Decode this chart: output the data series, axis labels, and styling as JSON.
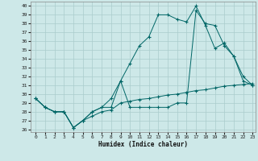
{
  "xlabel": "Humidex (Indice chaleur)",
  "background_color": "#cde8e8",
  "grid_color": "#aacccc",
  "line_color": "#006666",
  "xlim": [
    -0.5,
    23.3
  ],
  "ylim": [
    25.7,
    40.5
  ],
  "xticks": [
    0,
    1,
    2,
    3,
    4,
    5,
    6,
    7,
    8,
    9,
    10,
    11,
    12,
    13,
    14,
    15,
    16,
    17,
    18,
    19,
    20,
    21,
    22,
    23
  ],
  "yticks": [
    26,
    27,
    28,
    29,
    30,
    31,
    32,
    33,
    34,
    35,
    36,
    37,
    38,
    39,
    40
  ],
  "line1_x": [
    0,
    1,
    2,
    3,
    4,
    5,
    6,
    7,
    8,
    9,
    10,
    11,
    12,
    13,
    14,
    15,
    16,
    17,
    18,
    19,
    20,
    21,
    22,
    23
  ],
  "line1_y": [
    29.5,
    28.5,
    28,
    28,
    26.2,
    27.0,
    27.5,
    28.0,
    28.2,
    29.0,
    29.2,
    29.4,
    29.5,
    29.7,
    29.9,
    30.0,
    30.2,
    30.4,
    30.5,
    30.7,
    30.9,
    31.0,
    31.1,
    31.2
  ],
  "line2_x": [
    0,
    1,
    2,
    3,
    4,
    5,
    6,
    7,
    8,
    9,
    10,
    11,
    12,
    13,
    14,
    15,
    16,
    17,
    18,
    19,
    20,
    21,
    22,
    23
  ],
  "line2_y": [
    29.5,
    28.5,
    28,
    28,
    26.2,
    27.0,
    28.0,
    28.5,
    29.5,
    31.5,
    33.5,
    35.5,
    36.5,
    39.0,
    39.0,
    38.5,
    38.2,
    40.0,
    37.8,
    35.2,
    35.8,
    34.3,
    32.0,
    31.0
  ],
  "line3_x": [
    0,
    1,
    2,
    3,
    4,
    5,
    6,
    7,
    8,
    9,
    10,
    11,
    12,
    13,
    14,
    15,
    16,
    17,
    18,
    19,
    20,
    21,
    22,
    23
  ],
  "line3_y": [
    29.5,
    28.5,
    28,
    28,
    26.2,
    27.0,
    28.0,
    28.5,
    28.5,
    31.5,
    28.5,
    28.5,
    28.5,
    28.5,
    28.5,
    29.0,
    29.0,
    39.5,
    38.0,
    37.8,
    35.5,
    34.3,
    31.5,
    31.0
  ]
}
